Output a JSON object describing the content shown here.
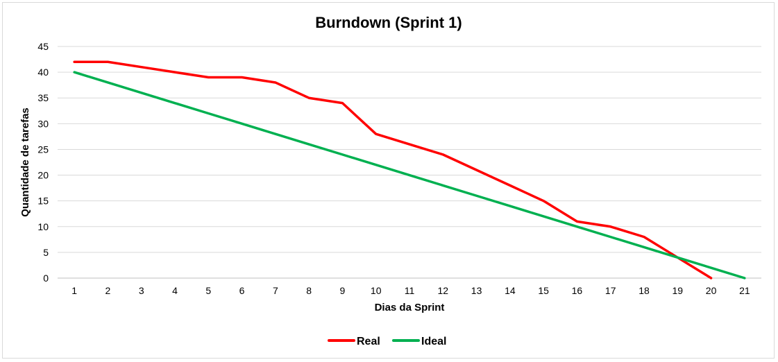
{
  "chart_data": {
    "type": "line",
    "title": "Burndown (Sprint 1)",
    "xlabel": "Dias da Sprint",
    "ylabel": "Quantidade de tarefas",
    "categories": [
      "1",
      "2",
      "3",
      "4",
      "5",
      "6",
      "7",
      "8",
      "9",
      "10",
      "11",
      "12",
      "13",
      "14",
      "15",
      "16",
      "17",
      "18",
      "19",
      "20",
      "21"
    ],
    "ylim": [
      0,
      45
    ],
    "yticks": [
      "0",
      "5",
      "10",
      "15",
      "20",
      "25",
      "30",
      "35",
      "40",
      "45"
    ],
    "grid": true,
    "legend_position": "bottom",
    "series": [
      {
        "name": "Real",
        "color": "#ff0000",
        "values": [
          42,
          42,
          41,
          40,
          39,
          39,
          38,
          35,
          34,
          28,
          26,
          24,
          21,
          18,
          15,
          11,
          10,
          8,
          4,
          0,
          null
        ]
      },
      {
        "name": "Ideal",
        "color": "#00b050",
        "values": [
          40,
          38,
          36,
          34,
          32,
          30,
          28,
          26,
          24,
          22,
          20,
          18,
          16,
          14,
          12,
          10,
          8,
          6,
          4,
          2,
          0
        ]
      }
    ]
  }
}
